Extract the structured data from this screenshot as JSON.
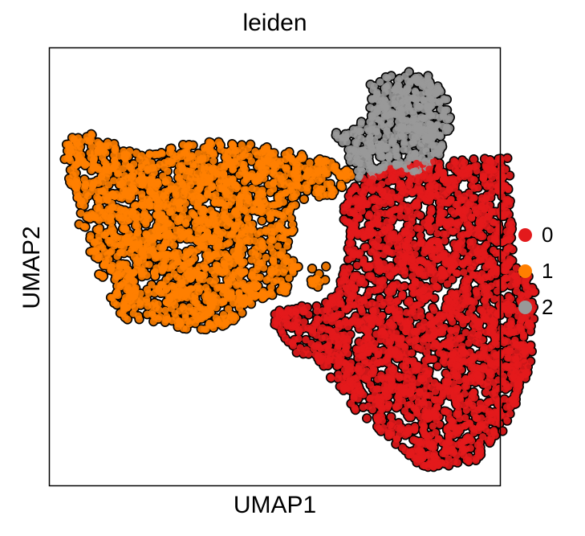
{
  "chart_data": {
    "type": "scatter",
    "title": "leiden",
    "xlabel": "UMAP1",
    "ylabel": "UMAP2",
    "grid": false,
    "legend_position": "right",
    "point_outline": "#000000",
    "series": [
      {
        "name": "0",
        "color": "#e31a1c",
        "regions": [
          [
            [
              8.1,
              7.4
            ],
            [
              10.2,
              7.5
            ],
            [
              10.3,
              5.0
            ],
            [
              10.8,
              4.8
            ],
            [
              10.7,
              2.8
            ],
            [
              10.2,
              1.4
            ],
            [
              9.4,
              0.5
            ],
            [
              8.3,
              0.4
            ],
            [
              6.7,
              1.8
            ],
            [
              6.2,
              2.5
            ],
            [
              5.5,
              3.0
            ],
            [
              5.0,
              3.6
            ],
            [
              5.0,
              4.0
            ],
            [
              6.2,
              4.2
            ],
            [
              6.4,
              4.5
            ],
            [
              6.6,
              5.5
            ],
            [
              6.5,
              6.4
            ],
            [
              6.8,
              7.0
            ],
            [
              7.4,
              7.2
            ],
            [
              8.1,
              7.4
            ]
          ]
        ],
        "n": 2300
      },
      {
        "name": "1",
        "color": "#ff7f00",
        "regions": [
          [
            [
              0.3,
              7.9
            ],
            [
              1.0,
              8.1
            ],
            [
              1.6,
              7.7
            ],
            [
              2.3,
              7.6
            ],
            [
              3.3,
              7.9
            ],
            [
              4.5,
              7.8
            ],
            [
              5.6,
              7.6
            ],
            [
              6.3,
              7.4
            ],
            [
              6.8,
              7.1
            ],
            [
              6.3,
              6.6
            ],
            [
              5.8,
              6.6
            ],
            [
              5.3,
              6.3
            ],
            [
              5.5,
              5.8
            ],
            [
              5.2,
              5.3
            ],
            [
              5.6,
              5.0
            ],
            [
              5.3,
              4.7
            ],
            [
              5.3,
              4.4
            ],
            [
              4.6,
              4.2
            ],
            [
              4.0,
              3.7
            ],
            [
              3.4,
              3.5
            ],
            [
              2.4,
              3.7
            ],
            [
              1.6,
              3.8
            ],
            [
              1.3,
              4.4
            ],
            [
              1.0,
              5.0
            ],
            [
              0.8,
              5.6
            ],
            [
              0.6,
              6.1
            ],
            [
              0.6,
              6.7
            ],
            [
              0.4,
              7.0
            ],
            [
              0.3,
              7.5
            ],
            [
              0.3,
              7.9
            ]
          ],
          [
            [
              5.7,
              5.0
            ],
            [
              6.2,
              5.1
            ],
            [
              6.1,
              4.5
            ],
            [
              5.7,
              4.6
            ],
            [
              5.7,
              5.0
            ]
          ]
        ],
        "n": 1750
      },
      {
        "name": "2",
        "color": "#999999",
        "regions": [
          [
            [
              7.1,
              9.2
            ],
            [
              7.8,
              9.5
            ],
            [
              8.4,
              9.4
            ],
            [
              8.9,
              8.8
            ],
            [
              8.9,
              8.1
            ],
            [
              8.7,
              7.6
            ],
            [
              8.2,
              7.1
            ],
            [
              7.6,
              7.3
            ],
            [
              7.2,
              7.0
            ],
            [
              6.8,
              7.0
            ],
            [
              6.6,
              7.6
            ],
            [
              6.3,
              8.1
            ],
            [
              6.8,
              8.2
            ],
            [
              7.1,
              8.5
            ],
            [
              7.1,
              9.2
            ]
          ]
        ],
        "n": 450
      }
    ],
    "xlim": [
      0,
      10
    ],
    "ylim": [
      0,
      10
    ]
  }
}
